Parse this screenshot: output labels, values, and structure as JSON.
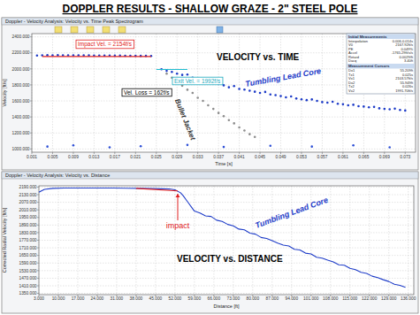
{
  "title": "DOPPLER RESULTS - SHALLOW GRAZE - 2\" STEEL POLE",
  "chart_data": [
    {
      "type": "scatter",
      "title": "Doppler - Velocity Analysis: Velocity vs. Time Peak Spectrogram",
      "x_label": "Time [s]",
      "y_label": "Velocity [ft/s]",
      "xlim": [
        0.001,
        0.075
      ],
      "ylim": [
        960,
        2440
      ],
      "xticks": [
        0.001,
        0.005,
        0.009,
        0.013,
        0.017,
        0.021,
        0.025,
        0.029,
        0.033,
        0.037,
        0.041,
        0.045,
        0.049,
        0.053,
        0.057,
        0.061,
        0.065,
        0.069,
        0.073
      ],
      "yticks": [
        {
          "value": 1000,
          "label": "1000.000"
        },
        {
          "value": 1200,
          "label": "1200.000"
        },
        {
          "value": 1400,
          "label": "1400.000"
        },
        {
          "value": 1600,
          "label": "1600.000"
        },
        {
          "value": 1800,
          "label": "1800.000"
        },
        {
          "value": 2000,
          "label": "2000.000"
        },
        {
          "value": 2200,
          "label": "2200.000"
        },
        {
          "value": 2400,
          "label": "2400.000"
        }
      ],
      "grid": true,
      "series": [
        {
          "color": "#1e3cc8",
          "marker": "circle",
          "x": [
            0.002,
            0.003,
            0.004,
            0.005,
            0.006,
            0.007,
            0.008,
            0.009,
            0.01,
            0.011,
            0.012,
            0.013,
            0.014,
            0.015,
            0.016,
            0.017,
            0.018,
            0.019,
            0.02,
            0.021,
            0.022,
            0.023,
            0.024,
            0.026,
            0.027,
            0.028,
            0.029,
            0.03,
            0.031,
            0.032,
            0.033,
            0.034,
            0.035,
            0.036,
            0.037,
            0.038,
            0.039,
            0.04,
            0.041,
            0.042,
            0.043,
            0.044,
            0.045,
            0.046,
            0.047,
            0.048,
            0.049,
            0.05,
            0.051,
            0.052,
            0.053,
            0.054,
            0.055,
            0.056,
            0.057,
            0.058,
            0.059,
            0.06,
            0.061,
            0.062,
            0.063,
            0.064,
            0.065,
            0.066,
            0.067,
            0.068,
            0.069,
            0.07,
            0.071,
            0.072,
            0.073
          ],
          "values": [
            2166,
            2170,
            2171,
            2170,
            2171,
            2170,
            2169,
            2170,
            2169,
            2168,
            2168,
            2167,
            2167,
            2166,
            2166,
            2165,
            2165,
            2164,
            2164,
            2163,
            2162,
            2162,
            2161,
            1995,
            1975,
            1962,
            1940,
            1925,
            1930,
            1890,
            1880,
            1850,
            1862,
            1820,
            1810,
            1795,
            1770,
            1785,
            1750,
            1742,
            1728,
            1715,
            1700,
            1712,
            1680,
            1672,
            1660,
            1645,
            1655,
            1630,
            1620,
            1610,
            1618,
            1600,
            1585,
            1578,
            1590,
            1565,
            1558,
            1545,
            1552,
            1535,
            1530,
            1520,
            1525,
            1508,
            1500,
            1495,
            1503,
            1488,
            1480
          ]
        },
        {
          "color": "#8c8c8c",
          "marker": "circle",
          "x": [
            0.027,
            0.028,
            0.029,
            0.03,
            0.031,
            0.032,
            0.033,
            0.034,
            0.035,
            0.036,
            0.037,
            0.038,
            0.039,
            0.04,
            0.041,
            0.042,
            0.043,
            0.044
          ],
          "values": [
            1940,
            1890,
            1835,
            1790,
            1740,
            1700,
            1640,
            1600,
            1545,
            1500,
            1450,
            1410,
            1360,
            1320,
            1270,
            1230,
            1185,
            1150
          ]
        },
        {
          "color": "#2d4fd6",
          "marker": "circle",
          "x": [
            0.004,
            0.009,
            0.016,
            0.022,
            0.031,
            0.038,
            0.047,
            0.055,
            0.063,
            0.07
          ],
          "values": [
            1030,
            1045,
            1020,
            1035,
            1050,
            1025,
            1040,
            1030,
            1045,
            1020
          ]
        },
        {
          "type": "line",
          "color": "#e02020",
          "x": [
            0.003,
            0.024
          ],
          "values": [
            2154,
            2154
          ]
        },
        {
          "type": "line",
          "color": "#20bcd0",
          "x": [
            0.025,
            0.031
          ],
          "values": [
            1992,
            1992
          ]
        }
      ],
      "annotations": [
        {
          "text": "Impact Vel. = 2154f/s",
          "color": "#e02020"
        },
        {
          "text": "Exit Vel. = 1992f/s",
          "color": "#1aa8bc"
        },
        {
          "text": "Vel. Loss = 162f/s",
          "color": "#000000"
        },
        {
          "text": "VELOCITY vs. TIME",
          "color": "#000000"
        },
        {
          "text": "Tumbling Lead Core",
          "color": "#1e3cc8"
        },
        {
          "text": "Bullet Jacket",
          "color": "#333333"
        }
      ],
      "info_panel": [
        {
          "title": "Initial Measurements",
          "rows": [
            [
              "Interpolation",
              "0.006-0.014s"
            ],
            [
              "V0",
              "2167.92ft/s"
            ],
            [
              "PE",
              "0.049%"
            ],
            [
              "Accel",
              "-1765.29ft/s/s"
            ],
            [
              "Retard",
              "0.0029/ft"
            ],
            [
              "Dacq",
              "3.40ft"
            ]
          ]
        },
        {
          "title": "Measurement Cursors",
          "rows": [
            [
              "Dx1",
              "55.209ft"
            ],
            [
              "Tx1",
              "0.025s"
            ],
            [
              "Vx1",
              "2103.57ft/s"
            ],
            [
              "Dx2",
              "55.949ft"
            ],
            [
              "Tx2",
              "0.026s"
            ],
            [
              "Vx2",
              "1991.70ft/s"
            ]
          ]
        }
      ]
    },
    {
      "type": "line",
      "title": "Doppler - Velocity Analysis: Velocity vs. Distance",
      "x_label": "Distance [ft]",
      "y_label": "Corrected Radial Velocity [ft/s]",
      "xlim": [
        3,
        138
      ],
      "ylim": [
        1340,
        2200
      ],
      "xticks": [
        {
          "value": 3,
          "label": "3.000"
        },
        {
          "value": 10,
          "label": "10.000"
        },
        {
          "value": 17,
          "label": "17.000"
        },
        {
          "value": 24,
          "label": "24.000"
        },
        {
          "value": 31,
          "label": "31.000"
        },
        {
          "value": 38,
          "label": "38.000"
        },
        {
          "value": 45,
          "label": "45.000"
        },
        {
          "value": 52,
          "label": "52.000"
        },
        {
          "value": 59,
          "label": "59.000"
        },
        {
          "value": 66,
          "label": "66.000"
        },
        {
          "value": 73,
          "label": "73.000"
        },
        {
          "value": 80,
          "label": "80.000"
        },
        {
          "value": 87,
          "label": "87.000"
        },
        {
          "value": 94,
          "label": "94.000"
        },
        {
          "value": 101,
          "label": "101.000"
        },
        {
          "value": 108,
          "label": "108.000"
        },
        {
          "value": 115,
          "label": "115.000"
        },
        {
          "value": 122,
          "label": "122.000"
        },
        {
          "value": 129,
          "label": "129.000"
        },
        {
          "value": 136,
          "label": "136.000"
        }
      ],
      "yticks": [
        {
          "value": 1350,
          "label": "1350.000"
        },
        {
          "value": 1410,
          "label": "1410.000"
        },
        {
          "value": 1470,
          "label": "1470.000"
        },
        {
          "value": 1530,
          "label": "1530.000"
        },
        {
          "value": 1590,
          "label": "1590.000"
        },
        {
          "value": 1650,
          "label": "1650.000"
        },
        {
          "value": 1710,
          "label": "1710.000"
        },
        {
          "value": 1770,
          "label": "1770.000"
        },
        {
          "value": 1830,
          "label": "1830.000"
        },
        {
          "value": 1890,
          "label": "1890.000"
        },
        {
          "value": 1950,
          "label": "1950.000"
        },
        {
          "value": 2010,
          "label": "2010.000"
        },
        {
          "value": 2070,
          "label": "2070.000"
        },
        {
          "value": 2130,
          "label": "2130.000"
        },
        {
          "value": 2190,
          "label": "2190.000"
        }
      ],
      "grid": true,
      "series": [
        {
          "color": "#1e3cc8",
          "x": [
            3,
            5,
            8,
            12,
            16,
            20,
            25,
            30,
            35,
            40,
            45,
            50,
            52,
            54,
            55,
            56,
            57,
            58,
            59,
            61,
            63,
            65,
            67,
            69,
            71,
            73,
            75,
            77,
            79,
            81,
            83,
            85,
            87,
            89,
            91,
            93,
            95,
            97,
            99,
            101,
            103,
            105,
            107,
            109,
            111,
            113,
            115,
            117,
            119,
            121,
            123,
            125,
            127,
            129,
            131,
            133,
            135
          ],
          "values": [
            2150,
            2172,
            2180,
            2182,
            2183,
            2183,
            2182,
            2182,
            2181,
            2180,
            2178,
            2175,
            2168,
            2145,
            2120,
            2090,
            2060,
            2030,
            2000,
            1985,
            1962,
            1958,
            1928,
            1918,
            1895,
            1883,
            1858,
            1852,
            1826,
            1818,
            1792,
            1784,
            1766,
            1748,
            1732,
            1724,
            1698,
            1693,
            1668,
            1662,
            1636,
            1628,
            1612,
            1598,
            1576,
            1572,
            1548,
            1538,
            1516,
            1508,
            1486,
            1474,
            1458,
            1444,
            1422,
            1414,
            1398
          ]
        },
        {
          "color": "#e02020",
          "x": [
            38,
            53
          ],
          "values": [
            2180,
            2160
          ]
        }
      ],
      "annotations": [
        {
          "text": "impact",
          "color": "#e02020"
        },
        {
          "text": "VELOCITY vs. DISTANCE",
          "color": "#000000"
        },
        {
          "text": "Tumbling Lead Core",
          "color": "#1e3cc8"
        }
      ]
    }
  ]
}
